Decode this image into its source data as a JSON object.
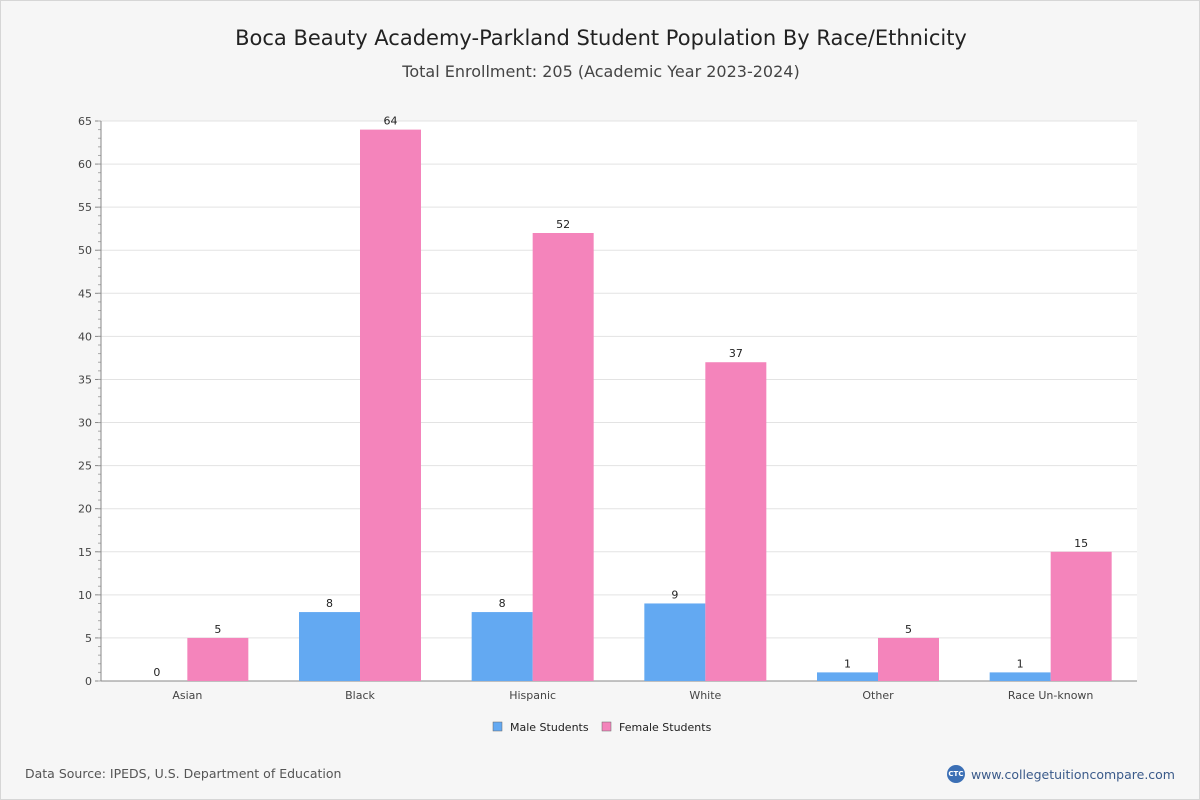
{
  "title": "Boca Beauty Academy-Parkland Student Population By Race/Ethnicity",
  "subtitle": "Total Enrollment: 205 (Academic Year 2023-2024)",
  "footer": {
    "source": "Data Source: IPEDS, U.S. Department of Education",
    "brand": "www.collegetuitioncompare.com",
    "brand_logo_text": "CTC"
  },
  "colors": {
    "male": "#63a9f2",
    "female": "#f484bb",
    "grid": "#e3e3e3",
    "axis": "#888888"
  },
  "chart_data": {
    "type": "bar",
    "categories": [
      "Asian",
      "Black",
      "Hispanic",
      "White",
      "Other",
      "Race Un-known"
    ],
    "series": [
      {
        "name": "Male Students",
        "values": [
          0,
          8,
          8,
          9,
          1,
          1
        ]
      },
      {
        "name": "Female Students",
        "values": [
          5,
          64,
          52,
          37,
          5,
          15
        ]
      }
    ],
    "ylim": [
      0,
      65
    ],
    "yticks": [
      0,
      5,
      10,
      15,
      20,
      25,
      30,
      35,
      40,
      45,
      50,
      55,
      60,
      65
    ],
    "grid": true,
    "legend": "bottom-center"
  }
}
